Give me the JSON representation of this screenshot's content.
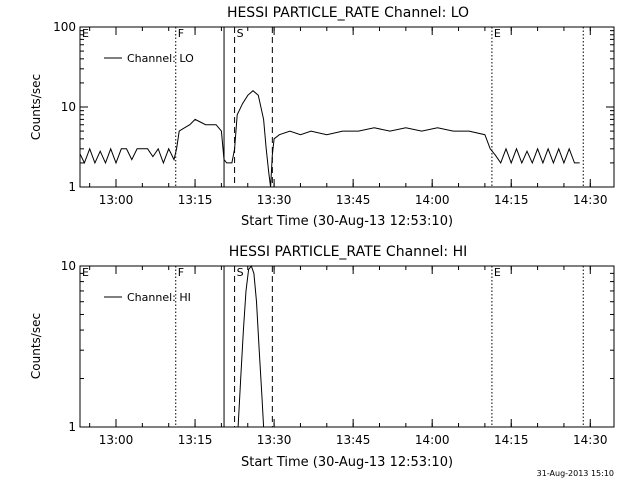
{
  "footer": {
    "timestamp": "31-Aug-2013 15:10"
  },
  "chart_data": [
    {
      "type": "line",
      "title": "HESSI PARTICLE_RATE Channel: LO",
      "xlabel": "Start Time (30-Aug-13 12:53:10)",
      "ylabel": "Counts/sec",
      "yscale": "log",
      "ylim": [
        1,
        100
      ],
      "xlim": [
        "12:53:10",
        "14:34:30"
      ],
      "x_ticks": [
        "13:00",
        "13:15",
        "13:30",
        "13:45",
        "14:00",
        "14:15",
        "14:30"
      ],
      "y_ticks": [
        "1",
        "10",
        "100"
      ],
      "legend": {
        "position": "top-left",
        "entries": [
          "Channel: LO"
        ]
      },
      "markers": [
        {
          "label": "E",
          "time": "12:53:10",
          "style": "none"
        },
        {
          "label": "F",
          "time": "13:11:20",
          "style": "dotted"
        },
        {
          "label": "",
          "time": "13:20:30",
          "style": "solid"
        },
        {
          "label": "S",
          "time": "13:22:30",
          "style": "dashed"
        },
        {
          "label": "",
          "time": "13:29:40",
          "style": "dashed"
        },
        {
          "label": "E",
          "time": "14:11:20",
          "style": "dotted"
        },
        {
          "label": "",
          "time": "14:28:40",
          "style": "dotted"
        }
      ],
      "series": [
        {
          "points": [
            [
              "12:53:10",
              2.6
            ],
            [
              "12:54:00",
              2
            ],
            [
              "12:55:00",
              3
            ],
            [
              "12:56:00",
              2
            ],
            [
              "12:57:00",
              2.8
            ],
            [
              "12:58:00",
              2
            ],
            [
              "12:59:00",
              3
            ],
            [
              "13:00:00",
              2
            ],
            [
              "13:01:00",
              3
            ],
            [
              "13:02:00",
              3
            ],
            [
              "13:03:00",
              2.2
            ],
            [
              "13:04:00",
              3
            ],
            [
              "13:05:00",
              3
            ],
            [
              "13:06:00",
              3
            ],
            [
              "13:07:00",
              2.4
            ],
            [
              "13:08:00",
              3
            ],
            [
              "13:09:00",
              2
            ],
            [
              "13:10:00",
              3
            ],
            [
              "13:11:00",
              2.2
            ],
            [
              "13:11:30",
              3
            ],
            [
              "13:12:00",
              5
            ],
            [
              "13:13:00",
              5.5
            ],
            [
              "13:14:00",
              6
            ],
            [
              "13:15:00",
              7
            ],
            [
              "13:16:00",
              6.5
            ],
            [
              "13:17:00",
              6
            ],
            [
              "13:18:00",
              6
            ],
            [
              "13:19:00",
              6
            ],
            [
              "13:20:00",
              5
            ],
            [
              "13:20:30",
              2.2
            ],
            [
              "13:21:00",
              2
            ],
            [
              "13:22:00",
              2
            ],
            [
              "13:22:30",
              3
            ],
            [
              "13:23:00",
              8
            ],
            [
              "13:24:00",
              11
            ],
            [
              "13:25:00",
              14
            ],
            [
              "13:26:00",
              16
            ],
            [
              "13:27:00",
              14
            ],
            [
              "13:28:00",
              7
            ],
            [
              "13:28:30",
              3
            ],
            [
              "13:29:00",
              1.5
            ],
            [
              "13:29:20",
              1
            ],
            [
              "13:29:40",
              2.5
            ],
            [
              "13:30:00",
              4
            ],
            [
              "13:31:00",
              4.5
            ],
            [
              "13:33:00",
              5
            ],
            [
              "13:35:00",
              4.5
            ],
            [
              "13:37:00",
              5
            ],
            [
              "13:40:00",
              4.5
            ],
            [
              "13:43:00",
              5
            ],
            [
              "13:46:00",
              5
            ],
            [
              "13:49:00",
              5.5
            ],
            [
              "13:52:00",
              5
            ],
            [
              "13:55:00",
              5.5
            ],
            [
              "13:58:00",
              5
            ],
            [
              "14:01:00",
              5.5
            ],
            [
              "14:04:00",
              5
            ],
            [
              "14:07:00",
              5
            ],
            [
              "14:10:00",
              4.5
            ],
            [
              "14:11:00",
              3
            ],
            [
              "14:12:00",
              2.5
            ],
            [
              "14:13:00",
              2
            ],
            [
              "14:14:00",
              3
            ],
            [
              "14:15:00",
              2
            ],
            [
              "14:16:00",
              3
            ],
            [
              "14:17:00",
              2
            ],
            [
              "14:18:00",
              2.8
            ],
            [
              "14:19:00",
              2
            ],
            [
              "14:20:00",
              3
            ],
            [
              "14:21:00",
              2
            ],
            [
              "14:22:00",
              3
            ],
            [
              "14:23:00",
              2
            ],
            [
              "14:24:00",
              3
            ],
            [
              "14:25:00",
              2
            ],
            [
              "14:26:00",
              3
            ],
            [
              "14:27:00",
              2
            ],
            [
              "14:28:00",
              2
            ]
          ]
        }
      ]
    },
    {
      "type": "line",
      "title": "HESSI PARTICLE_RATE Channel: HI",
      "xlabel": "Start Time (30-Aug-13 12:53:10)",
      "ylabel": "Counts/sec",
      "yscale": "log",
      "ylim": [
        1,
        10
      ],
      "xlim": [
        "12:53:10",
        "14:34:30"
      ],
      "x_ticks": [
        "13:00",
        "13:15",
        "13:30",
        "13:45",
        "14:00",
        "14:15",
        "14:30"
      ],
      "y_ticks": [
        "1",
        "10"
      ],
      "legend": {
        "position": "top-left",
        "entries": [
          "Channel: HI"
        ]
      },
      "markers": [
        {
          "label": "E",
          "time": "12:53:10",
          "style": "none"
        },
        {
          "label": "F",
          "time": "13:11:20",
          "style": "dotted"
        },
        {
          "label": "",
          "time": "13:20:30",
          "style": "solid"
        },
        {
          "label": "S",
          "time": "13:22:30",
          "style": "dashed"
        },
        {
          "label": "",
          "time": "13:29:40",
          "style": "dashed"
        },
        {
          "label": "E",
          "time": "14:11:20",
          "style": "dotted"
        },
        {
          "label": "",
          "time": "14:28:40",
          "style": "dotted"
        }
      ],
      "series": [
        {
          "points": [
            [
              "13:23:10",
              1
            ],
            [
              "13:23:40",
              2
            ],
            [
              "13:24:10",
              4
            ],
            [
              "13:24:40",
              7
            ],
            [
              "13:25:10",
              9.5
            ],
            [
              "13:25:40",
              10
            ],
            [
              "13:26:10",
              9
            ],
            [
              "13:26:40",
              6
            ],
            [
              "13:27:10",
              3
            ],
            [
              "13:27:40",
              1.6
            ],
            [
              "13:28:00",
              1
            ]
          ]
        }
      ]
    }
  ]
}
